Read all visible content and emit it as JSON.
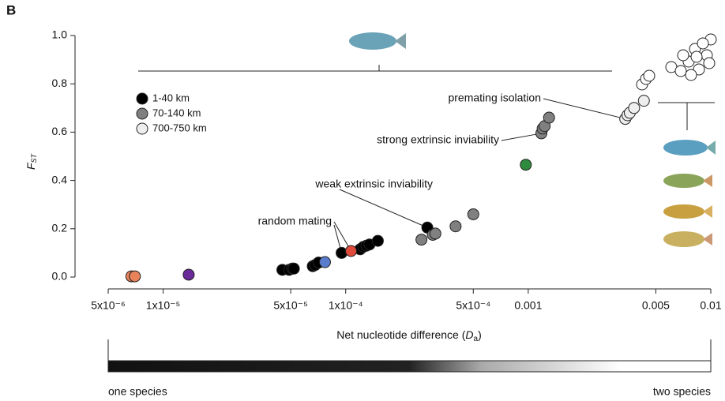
{
  "chart_data": {
    "type": "scatter",
    "panel": "B",
    "xlabel": [
      "Net nucleotide difference (",
      "D",
      "a",
      ")"
    ],
    "ylabel": [
      "F",
      "ST"
    ],
    "xscale": "log",
    "xlim": [
      5e-06,
      0.01
    ],
    "xticks": [
      {
        "value": 5e-06,
        "label": "5x10⁻⁶"
      },
      {
        "value": 1e-05,
        "label": "1x10⁻⁵"
      },
      {
        "value": 5e-05,
        "label": "5x10⁻⁵"
      },
      {
        "value": 0.0001,
        "label": "1x10⁻⁴"
      },
      {
        "value": 0.0005,
        "label": "5x10⁻⁴"
      },
      0.001,
      0.005,
      0.01
    ],
    "ylim": [
      0,
      1
    ],
    "yticks": [
      {
        "value": 0,
        "label": "0.0"
      },
      {
        "value": 0.2,
        "label": "0.2"
      },
      {
        "value": 0.4,
        "label": "0.4"
      },
      {
        "value": 0.6,
        "label": "0.6"
      },
      {
        "value": 0.8,
        "label": "0.8"
      },
      {
        "value": 1,
        "label": "1.0"
      }
    ],
    "series": [
      {
        "name": "1-40 km",
        "color": "#000000",
        "x": [
          4.5e-05,
          4.9e-05,
          5.1e-05,
          5.2e-05,
          6.6e-05,
          6.8e-05,
          7.1e-05,
          9.5e-05,
          0.00012,
          0.000125,
          0.00013,
          0.000135,
          0.00015,
          0.00028
        ],
        "values": [
          0.03,
          0.03,
          0.035,
          0.035,
          0.045,
          0.05,
          0.06,
          0.1,
          0.115,
          0.125,
          0.13,
          0.135,
          0.15,
          0.205
        ]
      },
      {
        "name": "70-140 km",
        "color": "#808080",
        "x": [
          0.00026,
          0.0003,
          0.00031,
          0.0004,
          0.0005,
          0.00118,
          0.0012,
          0.00123,
          0.0013
        ],
        "values": [
          0.155,
          0.175,
          0.18,
          0.21,
          0.26,
          0.595,
          0.615,
          0.625,
          0.66
        ]
      },
      {
        "name": "700-750 km",
        "color": "#eeeeee",
        "x": [
          0.0034,
          0.0035,
          0.0036,
          0.0038,
          0.0043
        ],
        "values": [
          0.655,
          0.67,
          0.68,
          0.7,
          0.73
        ]
      },
      {
        "color": "#e8825a",
        "x": [
          6.7e-06,
          7e-06
        ],
        "values": [
          0.003,
          0.003
        ]
      },
      {
        "color": "#6a2a9a",
        "x": [
          1.38e-05
        ],
        "values": [
          0.01
        ]
      },
      {
        "color": "#5a7ccc",
        "x": [
          7.7e-05
        ],
        "values": [
          0.062
        ]
      },
      {
        "color": "#e04a3a",
        "x": [
          0.000107
        ],
        "values": [
          0.108
        ]
      },
      {
        "color": "#2e8b3e",
        "x": [
          0.00097
        ],
        "values": [
          0.465
        ]
      }
    ],
    "annotations": [
      "premating isolation",
      "strong extrinsic inviability",
      "weak extrinsic inviability",
      "random mating"
    ],
    "scale_labels": [
      "one species",
      "two species"
    ]
  }
}
